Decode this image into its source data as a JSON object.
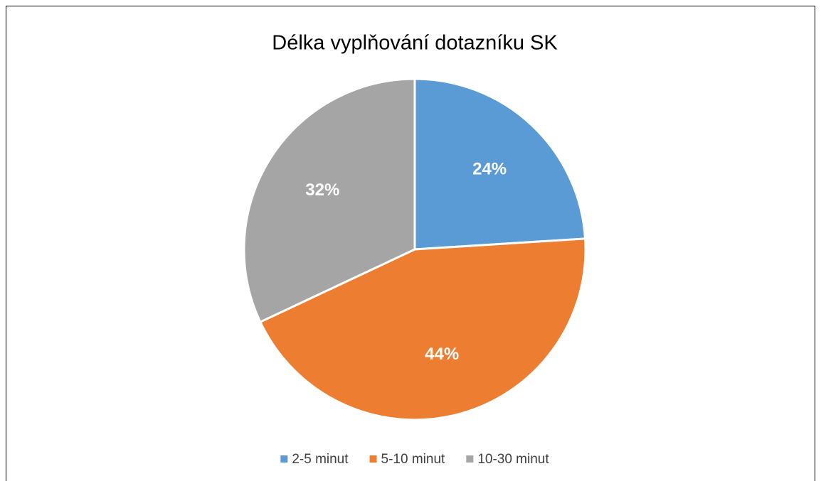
{
  "chart_data": {
    "type": "pie",
    "title": "Délka vyplňování dotazníku SK",
    "categories": [
      "2-5 minut",
      "5-10 minut",
      "10-30 minut"
    ],
    "values": [
      24,
      44,
      32
    ],
    "value_labels": [
      "24%",
      "44%",
      "32%"
    ],
    "colors": [
      "#5b9bd5",
      "#ed7d31",
      "#a5a5a5"
    ],
    "legend": "bottom"
  }
}
